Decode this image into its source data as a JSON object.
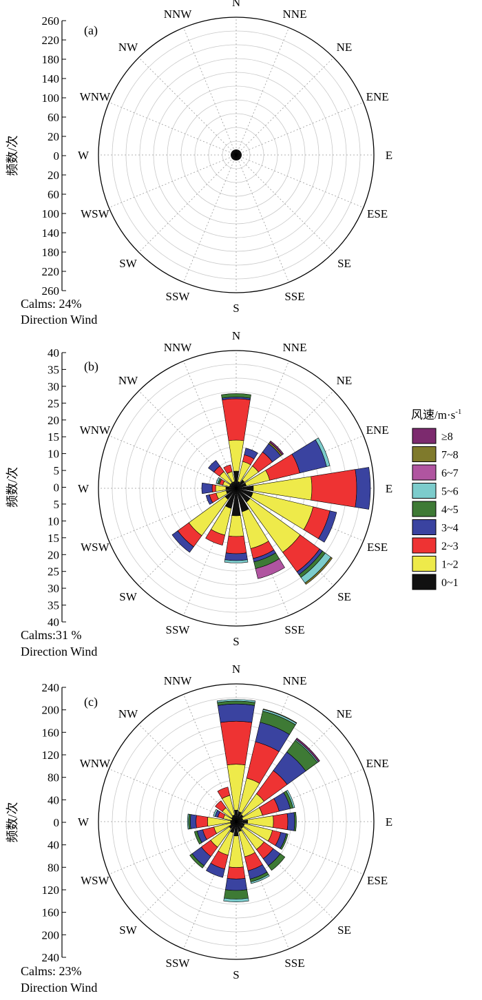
{
  "directions": [
    "N",
    "NNE",
    "NE",
    "ENE",
    "E",
    "ESE",
    "SE",
    "SSE",
    "S",
    "SSW",
    "SW",
    "WSW",
    "W",
    "WNW",
    "NW",
    "NNW"
  ],
  "speed_bins": [
    "0~1",
    "1~2",
    "2~3",
    "3~4",
    "4~5",
    "5~6",
    "6~7",
    "7~8",
    "≥8"
  ],
  "bin_colors": [
    "#111111",
    "#eeea4a",
    "#ee3333",
    "#3a43a0",
    "#3e7a35",
    "#7ccccc",
    "#b055a0",
    "#7f7a2c",
    "#7c2a6e"
  ],
  "legend": {
    "title": "风速/m·s",
    "title_sup": "-1",
    "entries": [
      "≥8",
      "7~8",
      "6~7",
      "5~6",
      "4~5",
      "3~4",
      "2~3",
      "1~2",
      "0~1"
    ]
  },
  "chart_data": [
    {
      "type": "windrose",
      "panel_label": "(a)",
      "ylabel": "频数/次",
      "calms_text": "Calms: 24%",
      "direction_text": "Direction Wind",
      "rmax": 260,
      "ticks": [
        "260",
        "220",
        "180",
        "140",
        "100",
        "60",
        "20",
        "0",
        "20",
        "60",
        "100",
        "140",
        "180",
        "220",
        "260"
      ],
      "series": [
        [
          10,
          0,
          0,
          0,
          0,
          0,
          0,
          0,
          0
        ],
        [
          10,
          0,
          0,
          0,
          0,
          0,
          0,
          0,
          0
        ],
        [
          10,
          0,
          0,
          0,
          0,
          0,
          0,
          0,
          0
        ],
        [
          10,
          0,
          0,
          0,
          0,
          0,
          0,
          0,
          0
        ],
        [
          10,
          0,
          0,
          0,
          0,
          0,
          0,
          0,
          0
        ],
        [
          10,
          0,
          0,
          0,
          0,
          0,
          0,
          0,
          0
        ],
        [
          10,
          0,
          0,
          0,
          0,
          0,
          0,
          0,
          0
        ],
        [
          10,
          0,
          0,
          0,
          0,
          0,
          0,
          0,
          0
        ],
        [
          10,
          0,
          0,
          0,
          0,
          0,
          0,
          0,
          0
        ],
        [
          10,
          0,
          0,
          0,
          0,
          0,
          0,
          0,
          0
        ],
        [
          10,
          0,
          0,
          0,
          0,
          0,
          0,
          0,
          0
        ],
        [
          10,
          0,
          0,
          0,
          0,
          0,
          0,
          0,
          0
        ],
        [
          10,
          0,
          0,
          0,
          0,
          0,
          0,
          0,
          0
        ],
        [
          10,
          0,
          0,
          0,
          0,
          0,
          0,
          0,
          0
        ],
        [
          10,
          0,
          0,
          0,
          0,
          0,
          0,
          0,
          0
        ],
        [
          10,
          0,
          0,
          0,
          0,
          0,
          0,
          0,
          0
        ]
      ]
    },
    {
      "type": "windrose",
      "panel_label": "(b)",
      "ylabel": "频数/次",
      "calms_text": "Calms:31 %",
      "direction_text": "Direction Wind",
      "rmax": 40,
      "ticks": [
        "40",
        "35",
        "30",
        "25",
        "20",
        "15",
        "10",
        "5",
        "0",
        "5",
        "10",
        "15",
        "20",
        "25",
        "30",
        "35",
        "40"
      ],
      "series": [
        [
          5,
          9,
          12,
          0.5,
          1,
          0,
          0,
          0,
          0
        ],
        [
          2,
          6,
          2,
          2,
          0,
          0,
          0,
          0,
          0
        ],
        [
          3,
          5,
          5,
          3,
          0,
          0,
          0,
          0.5,
          0.5
        ],
        [
          3,
          7,
          9,
          8,
          0,
          1,
          0,
          0,
          0
        ],
        [
          5,
          17,
          13,
          4,
          0,
          0,
          0,
          0,
          0
        ],
        [
          5,
          18,
          5,
          2,
          0,
          0,
          0,
          0,
          0
        ],
        [
          5,
          18,
          7,
          1,
          1,
          2,
          0,
          0.5,
          0
        ],
        [
          7,
          11,
          3,
          1,
          2,
          0,
          3,
          0,
          0
        ],
        [
          8,
          6,
          5,
          2,
          0,
          0.7,
          0,
          0,
          0
        ],
        [
          6,
          8,
          3,
          0,
          0,
          0,
          0,
          0,
          0
        ],
        [
          4,
          13,
          4,
          2,
          0,
          0,
          0,
          0,
          0
        ],
        [
          3,
          3,
          2,
          1,
          0,
          0,
          0,
          0,
          0
        ],
        [
          3,
          3,
          1,
          3,
          0,
          0,
          0,
          0,
          0
        ],
        [
          2,
          2,
          1,
          0,
          0.5,
          0.5,
          0,
          0,
          0
        ],
        [
          2,
          4,
          2,
          2,
          0,
          0,
          0,
          0,
          0
        ],
        [
          2,
          3,
          2,
          0,
          0,
          0,
          0,
          0,
          0
        ]
      ]
    },
    {
      "type": "windrose",
      "panel_label": "(c)",
      "ylabel": "频数/次",
      "calms_text": "Calms: 23%",
      "direction_text": "Direction Wind",
      "rmax": 240,
      "ticks": [
        "240",
        "200",
        "160",
        "120",
        "80",
        "40",
        "0",
        "40",
        "80",
        "120",
        "160",
        "200",
        "240"
      ],
      "series": [
        [
          20,
          80,
          75,
          30,
          5,
          3,
          0,
          0,
          0
        ],
        [
          18,
          60,
          65,
          35,
          20,
          3,
          0,
          1,
          0
        ],
        [
          15,
          45,
          50,
          40,
          25,
          2,
          0,
          0,
          3
        ],
        [
          12,
          35,
          30,
          20,
          5,
          3,
          0,
          0,
          0
        ],
        [
          20,
          45,
          25,
          12,
          3,
          0,
          0,
          0,
          0
        ],
        [
          15,
          50,
          15,
          10,
          3,
          0,
          0,
          0,
          0
        ],
        [
          15,
          45,
          20,
          15,
          10,
          0,
          0,
          0,
          0
        ],
        [
          18,
          45,
          25,
          15,
          5,
          3,
          0,
          0,
          0
        ],
        [
          25,
          55,
          20,
          20,
          15,
          5,
          0,
          0,
          0
        ],
        [
          20,
          40,
          25,
          15,
          0,
          0,
          0,
          0,
          0
        ],
        [
          15,
          40,
          20,
          20,
          5,
          0,
          0,
          0,
          0
        ],
        [
          10,
          30,
          20,
          10,
          5,
          0,
          0,
          0,
          0
        ],
        [
          10,
          40,
          20,
          10,
          3,
          2,
          0,
          0,
          0
        ],
        [
          8,
          15,
          10,
          5,
          0,
          3,
          0,
          0,
          0
        ],
        [
          10,
          20,
          15,
          0,
          0,
          0,
          0,
          0,
          0
        ],
        [
          12,
          35,
          15,
          0,
          0,
          0,
          0,
          0,
          0
        ]
      ]
    }
  ]
}
